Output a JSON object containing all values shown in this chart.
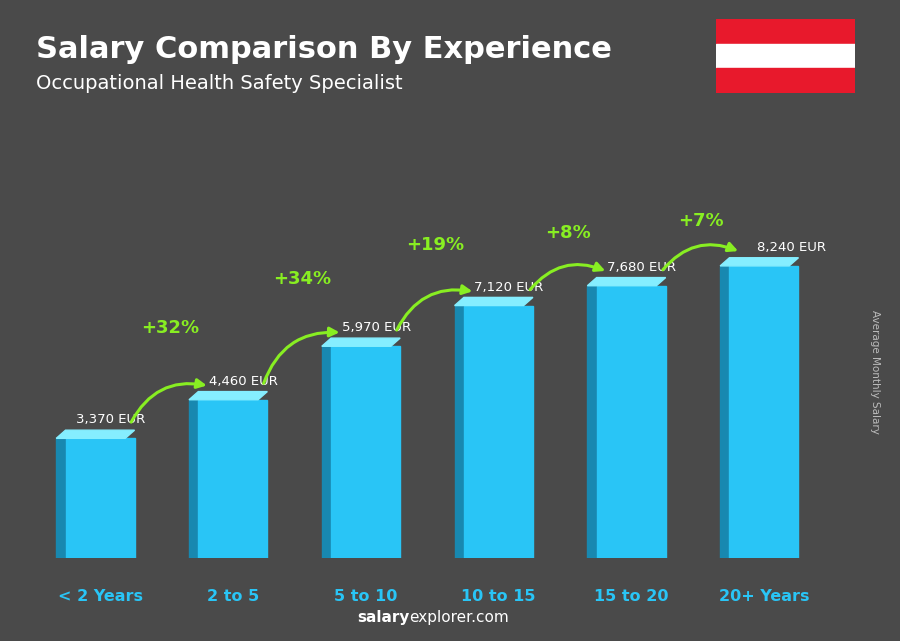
{
  "title": "Salary Comparison By Experience",
  "subtitle": "Occupational Health Safety Specialist",
  "categories": [
    "< 2 Years",
    "2 to 5",
    "5 to 10",
    "10 to 15",
    "15 to 20",
    "20+ Years"
  ],
  "values": [
    3370,
    4460,
    5970,
    7120,
    7680,
    8240
  ],
  "bar_color_face": "#29c5f6",
  "bar_color_left": "#1888b0",
  "bar_color_top": "#85eeff",
  "background_color": "#4a4a4a",
  "title_color": "#ffffff",
  "subtitle_color": "#ffffff",
  "xlabel_color": "#29c5f6",
  "value_labels": [
    "3,370 EUR",
    "4,460 EUR",
    "5,970 EUR",
    "7,120 EUR",
    "7,680 EUR",
    "8,240 EUR"
  ],
  "pct_labels": [
    "+32%",
    "+34%",
    "+19%",
    "+8%",
    "+7%"
  ],
  "pct_color": "#88ee22",
  "ylabel_text": "Average Monthly Salary",
  "footer_salary": "salary",
  "footer_rest": "explorer.com",
  "ylim_max": 10500,
  "flag_color_red": "#e8192c",
  "flag_color_white": "#ffffff"
}
